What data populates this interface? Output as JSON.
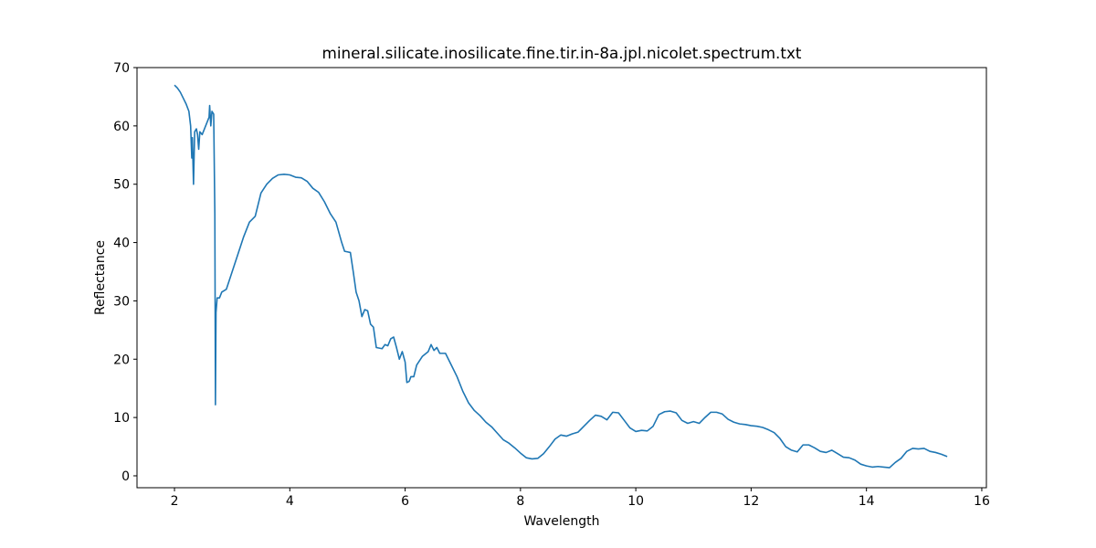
{
  "chart_data": {
    "type": "line",
    "title": "mineral.silicate.inosilicate.fine.tir.in-8a.jpl.nicolet.spectrum.txt",
    "x_label": "Wavelength",
    "y_label": "Reflectance",
    "x": [
      2.0,
      2.05,
      2.1,
      2.15,
      2.2,
      2.25,
      2.28,
      2.3,
      2.31,
      2.33,
      2.35,
      2.38,
      2.4,
      2.42,
      2.44,
      2.48,
      2.52,
      2.56,
      2.6,
      2.61,
      2.63,
      2.65,
      2.68,
      2.7,
      2.71,
      2.72,
      2.74,
      2.78,
      2.82,
      2.9,
      3.0,
      3.1,
      3.2,
      3.3,
      3.4,
      3.45,
      3.5,
      3.6,
      3.7,
      3.8,
      3.9,
      4.0,
      4.1,
      4.2,
      4.3,
      4.4,
      4.5,
      4.6,
      4.7,
      4.8,
      4.9,
      4.95,
      5.05,
      5.1,
      5.15,
      5.2,
      5.25,
      5.3,
      5.35,
      5.4,
      5.45,
      5.5,
      5.6,
      5.65,
      5.7,
      5.75,
      5.8,
      5.85,
      5.9,
      5.95,
      6.0,
      6.03,
      6.07,
      6.1,
      6.15,
      6.2,
      6.3,
      6.4,
      6.45,
      6.5,
      6.55,
      6.6,
      6.7,
      6.8,
      6.9,
      7.0,
      7.1,
      7.2,
      7.3,
      7.4,
      7.5,
      7.6,
      7.7,
      7.8,
      7.9,
      8.0,
      8.1,
      8.2,
      8.3,
      8.4,
      8.5,
      8.6,
      8.7,
      8.8,
      8.9,
      9.0,
      9.1,
      9.2,
      9.3,
      9.4,
      9.5,
      9.6,
      9.7,
      9.8,
      9.9,
      10.0,
      10.1,
      10.2,
      10.3,
      10.4,
      10.5,
      10.6,
      10.7,
      10.8,
      10.9,
      11.0,
      11.1,
      11.2,
      11.3,
      11.4,
      11.5,
      11.6,
      11.7,
      11.8,
      11.9,
      12.0,
      12.1,
      12.2,
      12.3,
      12.4,
      12.5,
      12.6,
      12.7,
      12.8,
      12.9,
      13.0,
      13.1,
      13.2,
      13.3,
      13.4,
      13.5,
      13.6,
      13.7,
      13.8,
      13.9,
      14.0,
      14.1,
      14.2,
      14.3,
      14.4,
      14.5,
      14.6,
      14.7,
      14.8,
      14.9,
      15.0,
      15.1,
      15.2,
      15.3,
      15.4
    ],
    "series": [
      {
        "name": "Reflectance",
        "color": "#1f77b4",
        "values": [
          67,
          66.5,
          65.8,
          64.8,
          63.8,
          62.5,
          60,
          54.5,
          58,
          50,
          59,
          59.5,
          58.5,
          56,
          59,
          58.5,
          59.5,
          60.5,
          61.5,
          63.5,
          60,
          62.5,
          62,
          45,
          12.2,
          28,
          30.5,
          30.5,
          31.5,
          32,
          35,
          38,
          41,
          43.5,
          44.5,
          46.5,
          48.5,
          50,
          51,
          51.6,
          51.7,
          51.6,
          51.2,
          51.1,
          50.5,
          49.3,
          48.6,
          47,
          45,
          43.5,
          40,
          38.5,
          38.3,
          35,
          31.5,
          30,
          27.3,
          28.5,
          28.3,
          26,
          25.5,
          22,
          21.8,
          22.5,
          22.3,
          23.5,
          23.8,
          22,
          20,
          21.3,
          19.5,
          16,
          16.2,
          17,
          17,
          19,
          20.5,
          21.3,
          22.5,
          21.5,
          22,
          21,
          21,
          19,
          17,
          14.5,
          12.5,
          11.2,
          10.3,
          9.2,
          8.4,
          7.3,
          6.2,
          5.6,
          4.8,
          3.9,
          3.1,
          2.9,
          3.0,
          3.8,
          5.0,
          6.3,
          7.0,
          6.8,
          7.2,
          7.5,
          8.5,
          9.5,
          10.4,
          10.2,
          9.6,
          10.9,
          10.8,
          9.5,
          8.2,
          7.6,
          7.8,
          7.7,
          8.5,
          10.5,
          11.0,
          11.1,
          10.8,
          9.5,
          9.0,
          9.3,
          9.0,
          10.0,
          10.9,
          10.9,
          10.6,
          9.7,
          9.2,
          8.9,
          8.8,
          8.6,
          8.5,
          8.3,
          7.9,
          7.4,
          6.4,
          5.0,
          4.4,
          4.1,
          5.3,
          5.3,
          4.8,
          4.2,
          4.0,
          4.4,
          3.8,
          3.2,
          3.1,
          2.7,
          2.0,
          1.7,
          1.5,
          1.6,
          1.5,
          1.4,
          2.3,
          3.0,
          4.2,
          4.7,
          4.6,
          4.7,
          4.2,
          4.0,
          3.7,
          3.3
        ]
      }
    ],
    "xlim": [
      1.35,
      16.08
    ],
    "ylim": [
      -2.04,
      70
    ],
    "xticks": [
      2,
      4,
      6,
      8,
      10,
      12,
      14,
      16
    ],
    "yticks": [
      0,
      10,
      20,
      30,
      40,
      50,
      60,
      70
    ]
  }
}
